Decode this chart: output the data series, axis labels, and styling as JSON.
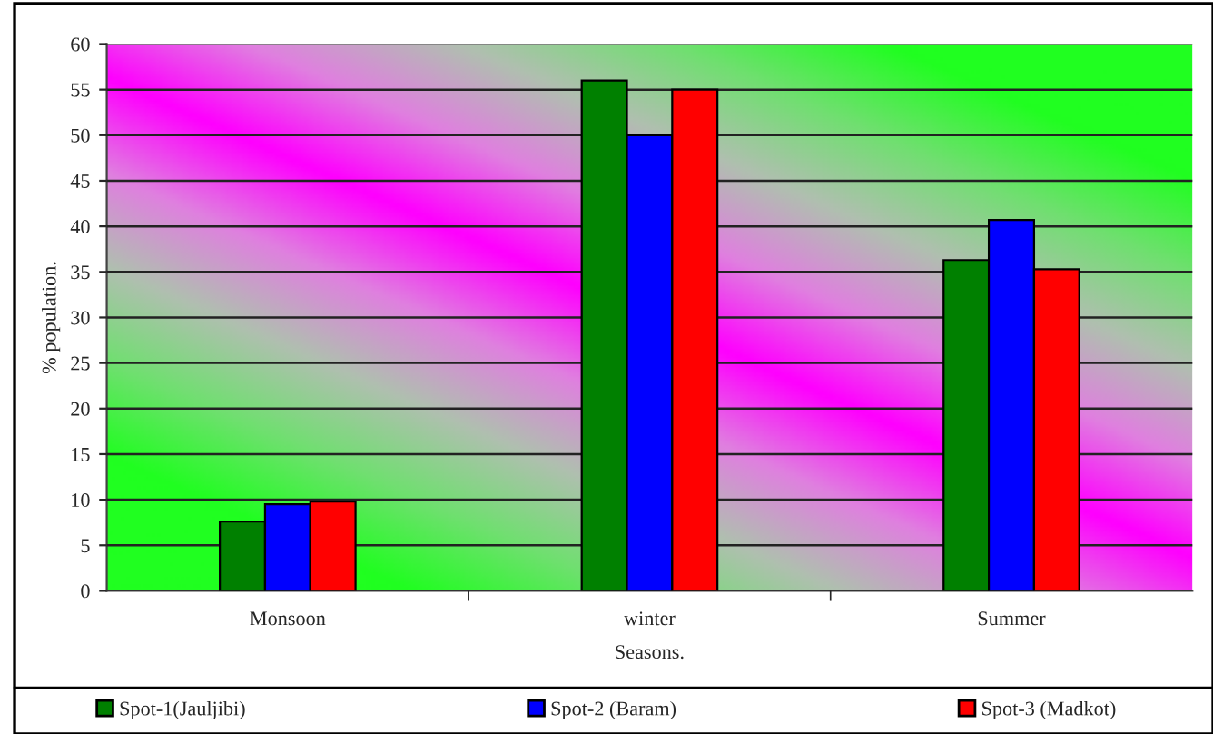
{
  "chart_data": {
    "type": "bar",
    "xlabel": "Seasons.",
    "ylabel": "% population.",
    "categories": [
      "Monsoon",
      "winter",
      "Summer"
    ],
    "series": [
      {
        "name": "Spot-1(Jauljibi)",
        "color": "#008000",
        "values": [
          7.6,
          56,
          36.3
        ]
      },
      {
        "name": "Spot-2 (Baram)",
        "color": "#0000ff",
        "values": [
          9.5,
          50,
          40.7
        ]
      },
      {
        "name": "Spot-3 (Madkot)",
        "color": "#ff0000",
        "values": [
          9.8,
          55,
          35.3
        ]
      }
    ],
    "ylim": [
      0,
      60
    ],
    "yticks": [
      0,
      5,
      10,
      15,
      20,
      25,
      30,
      35,
      40,
      45,
      50,
      55,
      60
    ],
    "grid": "y",
    "legend": "bottom"
  }
}
